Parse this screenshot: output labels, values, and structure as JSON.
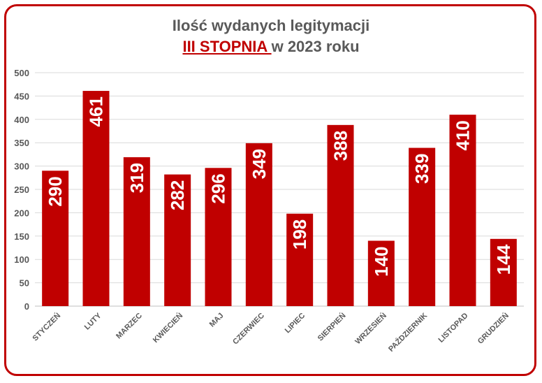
{
  "chart_data": {
    "type": "bar",
    "title_line1": "Ilość wydanych legitymacji",
    "title_highlight": "III STOPNIA ",
    "title_rest": "w 2023 roku",
    "categories": [
      "STYCZEŃ",
      "LUTY",
      "MARZEC",
      "KWIECIEŃ",
      "MAJ",
      "CZERWIEC",
      "LIPIEC",
      "SIERPIEŃ",
      "WRZESIEŃ",
      "PAŹDZIERNIK",
      "LISTOPAD",
      "GRUDZIEŃ"
    ],
    "values": [
      290,
      461,
      319,
      282,
      296,
      349,
      198,
      388,
      140,
      339,
      410,
      144
    ],
    "ylim": [
      0,
      500
    ],
    "yticks": [
      0,
      50,
      100,
      150,
      200,
      250,
      300,
      350,
      400,
      450,
      500
    ],
    "grid": true,
    "bar_color": "#c00000",
    "accent_color": "#c00000"
  }
}
